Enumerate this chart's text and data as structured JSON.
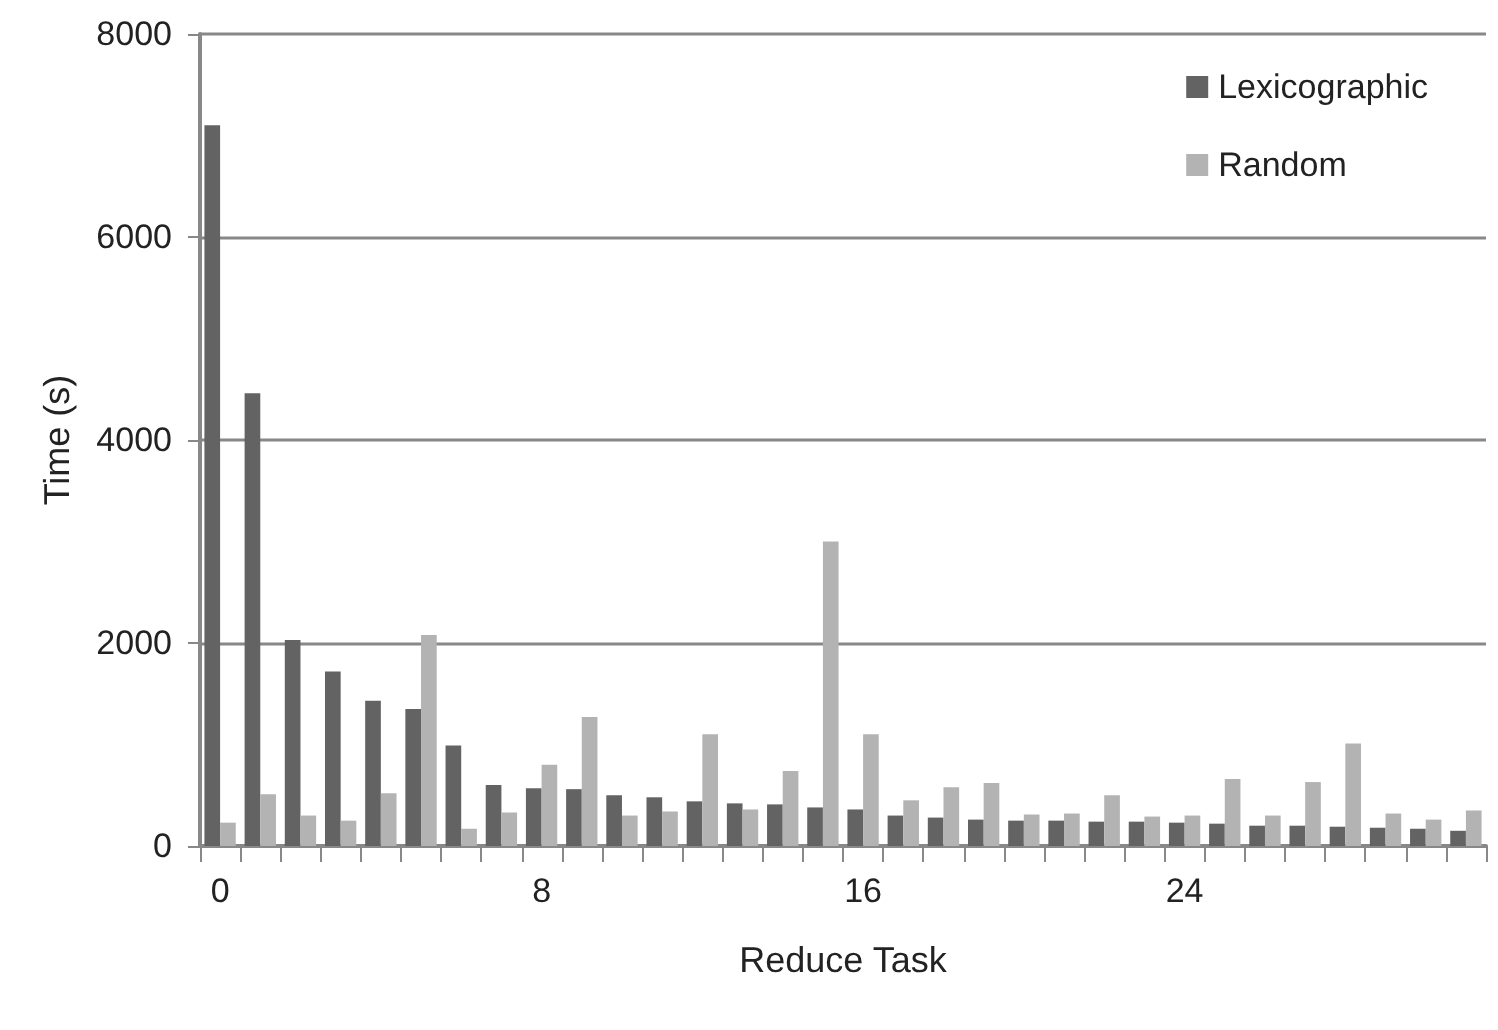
{
  "chart_data": {
    "type": "bar",
    "xlabel": "Reduce Task",
    "ylabel": "Time (s)",
    "categories": [
      "0",
      null,
      null,
      null,
      null,
      null,
      null,
      null,
      "8",
      null,
      null,
      null,
      null,
      null,
      null,
      null,
      "16",
      null,
      null,
      null,
      null,
      null,
      null,
      null,
      "24",
      null,
      null,
      null,
      null,
      null,
      null,
      null
    ],
    "series": [
      {
        "name": "Lexicographic",
        "color": "#636363",
        "values": [
          7100,
          4460,
          2030,
          1720,
          1430,
          1350,
          990,
          600,
          570,
          560,
          500,
          480,
          440,
          420,
          410,
          380,
          360,
          300,
          280,
          260,
          250,
          250,
          240,
          240,
          230,
          220,
          200,
          200,
          190,
          180,
          170,
          150
        ]
      },
      {
        "name": "Random",
        "color": "#b3b3b3",
        "values": [
          230,
          510,
          300,
          250,
          520,
          2080,
          170,
          330,
          800,
          1270,
          300,
          340,
          1100,
          360,
          740,
          3000,
          1100,
          450,
          580,
          620,
          310,
          320,
          500,
          290,
          300,
          660,
          300,
          630,
          1010,
          320,
          260,
          350
        ]
      }
    ],
    "ylim": [
      0,
      8000
    ],
    "yticks": [
      0,
      2000,
      4000,
      6000,
      8000
    ],
    "grid": "y",
    "legend": "top right"
  }
}
